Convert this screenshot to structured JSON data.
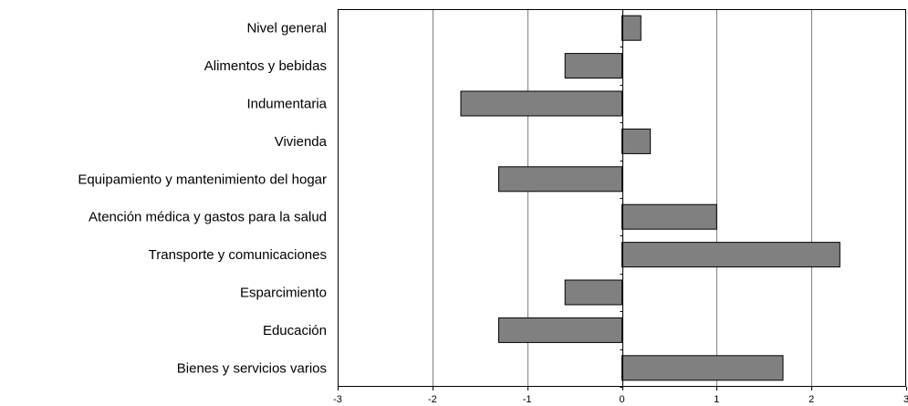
{
  "chart_data": {
    "type": "bar",
    "orientation": "horizontal",
    "categories": [
      "Nivel general",
      "Alimentos y bebidas",
      "Indumentaria",
      "Vivienda",
      "Equipamiento y mantenimiento del hogar",
      "Atención médica y gastos para la salud",
      "Transporte y comunicaciones",
      "Esparcimiento",
      "Educación",
      "Bienes y servicios varios"
    ],
    "values": [
      0.2,
      -0.6,
      -1.7,
      0.3,
      -1.3,
      1.0,
      2.3,
      -0.6,
      -1.3,
      1.7
    ],
    "xlim": [
      -3,
      3
    ],
    "xticks": [
      -3,
      -2,
      -1,
      0,
      1,
      2,
      3
    ],
    "xtick_labels": [
      "-3",
      "-2",
      "-1",
      "0",
      "1",
      "2",
      "3"
    ],
    "grid": "vertical",
    "legend": "none",
    "colors": {
      "bar": "#808080",
      "bar_edge": "#000000",
      "grid": "#808080"
    }
  }
}
